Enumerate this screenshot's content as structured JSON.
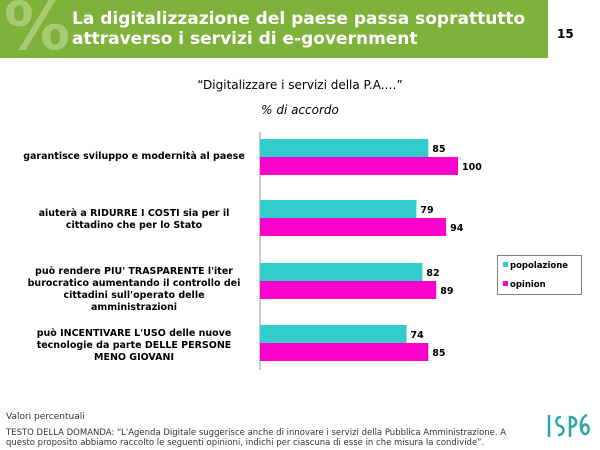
{
  "header": {
    "title": "La digitalizzazione del paese passa soprattutto attraverso i servizi di e-government",
    "page_number": "15",
    "percent_glyph": "%"
  },
  "subtitle": "“Digitalizzare i servizi della P.A.…”",
  "unit_label": "% di accordo",
  "colors": {
    "header": "#7fb23a",
    "popolazione": "#33cccc",
    "opinion": "#ff00cc"
  },
  "legend": {
    "popolazione": "popolazione",
    "opinion": "opinion"
  },
  "chart_data": {
    "type": "bar",
    "orientation": "horizontal",
    "categories": [
      "garantisce sviluppo e modernità al paese",
      "aiuterà a RIDURRE I COSTI sia per il cittadino che per lo Stato",
      "può rendere PIU' TRASPARENTE l'iter burocratico aumentando il controllo dei cittadini sull'operato delle amministrazioni",
      "può INCENTIVARE L'USO delle nuove tecnologie da parte DELLE PERSONE MENO GIOVANI"
    ],
    "series": [
      {
        "name": "popolazione",
        "values": [
          85,
          79,
          82,
          74
        ]
      },
      {
        "name": "opinion",
        "values": [
          100,
          94,
          89,
          85
        ]
      }
    ],
    "xlim": [
      0,
      100
    ],
    "legend_position": "right",
    "grid": false
  },
  "footer": {
    "note": "Valori percentuali",
    "question": "TESTO DELLA DOMANDA: “L'Agenda Digitale suggerisce anche di innovare i servizi della Pubblica Amministrazione. A questo proposito abbiamo raccolto le seguenti opinioni, indichi per ciascuna di esse in che misura la condivide”."
  },
  "logo_text": "ISPO"
}
